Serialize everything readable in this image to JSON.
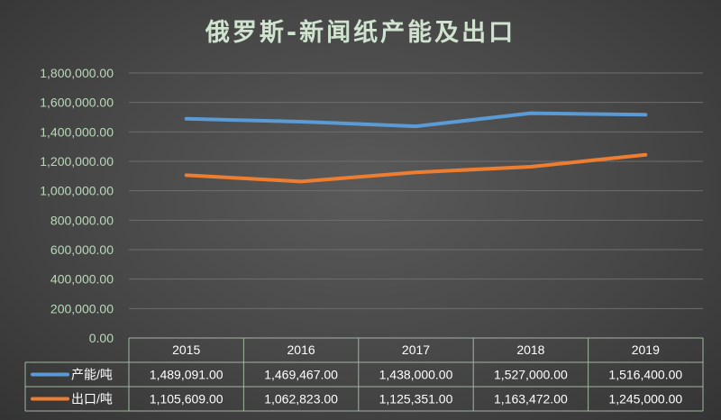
{
  "chart_data": {
    "type": "line",
    "title": "俄罗斯-新闻纸产能及出口",
    "categories": [
      "2015",
      "2016",
      "2017",
      "2018",
      "2019"
    ],
    "ylim": [
      0,
      1800000
    ],
    "yticks": [
      "0.00",
      "200,000.00",
      "400,000.00",
      "600,000.00",
      "800,000.00",
      "1,000,000.00",
      "1,200,000.00",
      "1,400,000.00",
      "1,600,000.00",
      "1,800,000.00"
    ],
    "grid": true,
    "legend_position": "data-table",
    "series": [
      {
        "name": "产能/吨",
        "color": "#5b9bd5",
        "values": [
          1489091,
          1469467,
          1438000,
          1527000,
          1516400
        ],
        "labels": [
          "1,489,091.00",
          "1,469,467.00",
          "1,438,000.00",
          "1,527,000.00",
          "1,516,400.00"
        ]
      },
      {
        "name": "出口/吨",
        "color": "#ed7d31",
        "values": [
          1105609,
          1062823,
          1125351,
          1163472,
          1245000
        ],
        "labels": [
          "1,105,609.00",
          "1,062,823.00",
          "1,125,351.00",
          "1,163,472.00",
          "1,245,000.00"
        ]
      }
    ]
  }
}
